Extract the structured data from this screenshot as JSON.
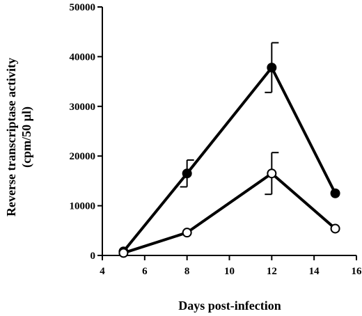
{
  "chart_data": {
    "type": "line",
    "title": "",
    "xlabel": "Days  post-infection",
    "ylabel_line1": "Reverse  transcriptase  activity",
    "ylabel_line2": "(cpm/50  µl)",
    "xlim": [
      4,
      16
    ],
    "ylim": [
      0,
      50000
    ],
    "x_ticks": [
      "4",
      "6",
      "8",
      "10",
      "12",
      "14",
      "16"
    ],
    "y_ticks": [
      "0",
      "10000",
      "20000",
      "30000",
      "40000",
      "50000"
    ],
    "grid": false,
    "series": [
      {
        "marker": "filled-circle",
        "color": "#000000",
        "x": [
          5,
          8,
          12,
          15
        ],
        "y": [
          800,
          16500,
          37800,
          12500
        ],
        "error": [
          0,
          2700,
          5000,
          0
        ]
      },
      {
        "marker": "open-circle",
        "color": "#000000",
        "x": [
          5,
          8,
          12,
          15
        ],
        "y": [
          500,
          4600,
          16500,
          5400
        ],
        "error": [
          0,
          0,
          4200,
          0
        ]
      }
    ]
  }
}
